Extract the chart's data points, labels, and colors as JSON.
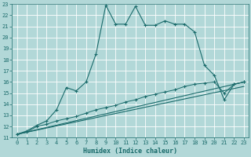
{
  "xlabel": "Humidex (Indice chaleur)",
  "bg_color": "#b2d8d8",
  "grid_color": "#ffffff",
  "line_color": "#1a6b6b",
  "xlim": [
    -0.5,
    23.5
  ],
  "ylim": [
    11,
    23
  ],
  "x_ticks": [
    0,
    1,
    2,
    3,
    4,
    5,
    6,
    7,
    8,
    9,
    10,
    11,
    12,
    13,
    14,
    15,
    16,
    17,
    18,
    19,
    20,
    21,
    22,
    23
  ],
  "y_ticks": [
    11,
    12,
    13,
    14,
    15,
    16,
    17,
    18,
    19,
    20,
    21,
    22,
    23
  ],
  "series1_x": [
    0,
    1,
    2,
    3,
    4,
    5,
    6,
    7,
    8,
    9,
    10,
    11,
    12,
    13,
    14,
    15,
    16,
    17,
    18,
    19,
    20,
    21,
    22,
    23
  ],
  "series1_y": [
    11.3,
    11.6,
    12.1,
    12.5,
    13.5,
    15.5,
    15.2,
    16.0,
    18.5,
    22.9,
    21.2,
    21.2,
    22.8,
    21.1,
    21.1,
    21.5,
    21.2,
    21.2,
    20.5,
    17.5,
    16.6,
    14.4,
    15.8,
    16.0
  ],
  "series2_x": [
    0,
    1,
    2,
    3,
    4,
    5,
    6,
    7,
    8,
    9,
    10,
    11,
    12,
    13,
    14,
    15,
    16,
    17,
    18,
    19,
    20,
    21,
    22,
    23
  ],
  "series2_y": [
    11.3,
    11.5,
    12.0,
    12.2,
    12.5,
    12.7,
    12.9,
    13.2,
    13.5,
    13.7,
    13.9,
    14.2,
    14.4,
    14.7,
    14.9,
    15.1,
    15.3,
    15.6,
    15.8,
    15.9,
    16.0,
    15.0,
    15.8,
    16.0
  ],
  "series3_x": [
    0,
    23
  ],
  "series3_y": [
    11.3,
    16.0
  ],
  "series4_x": [
    0,
    23
  ],
  "series4_y": [
    11.3,
    15.6
  ]
}
